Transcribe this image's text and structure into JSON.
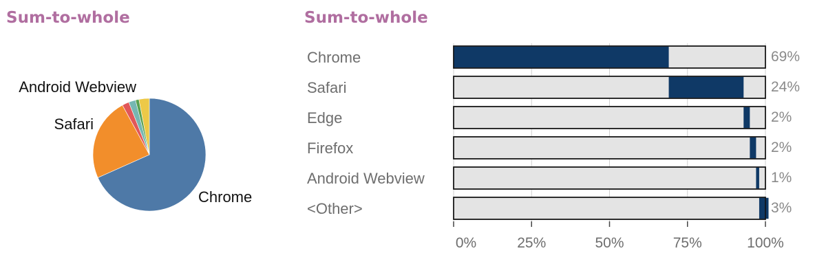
{
  "colors": {
    "title": "#b06ea0",
    "bar_fill": "#0f3966",
    "bar_track": "#e4e4e4",
    "grid": "#cfcfcf",
    "pie": [
      "#4e79a7",
      "#f28e2b",
      "#e15759",
      "#76b7b2",
      "#59a14f",
      "#edc948"
    ]
  },
  "chart_data": [
    {
      "type": "pie",
      "title": "Sum-to-whole",
      "categories": [
        "Chrome",
        "Safari",
        "Edge",
        "Firefox",
        "Android Webview",
        "<Other>"
      ],
      "values": [
        69,
        24,
        2,
        2,
        1,
        3
      ],
      "labels": [
        "Chrome",
        "Safari",
        "Android Webview"
      ]
    },
    {
      "type": "bar",
      "orientation": "horizontal",
      "stacked_offset": true,
      "title": "Sum-to-whole",
      "categories": [
        "Chrome",
        "Safari",
        "Edge",
        "Firefox",
        "Android Webview",
        "<Other>"
      ],
      "values": [
        69,
        24,
        2,
        2,
        1,
        3
      ],
      "value_labels": [
        "69%",
        "24%",
        "2%",
        "2%",
        "1%",
        "3%"
      ],
      "xlim": [
        0,
        100
      ],
      "xticks": [
        "0%",
        "25%",
        "50%",
        "75%",
        "100%"
      ],
      "grid": true
    }
  ]
}
